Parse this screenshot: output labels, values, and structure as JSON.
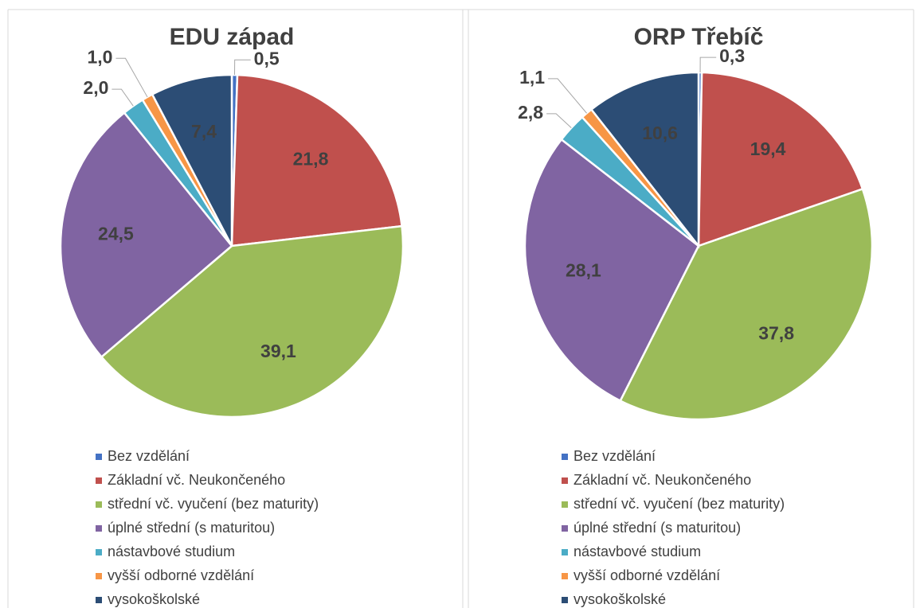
{
  "chart_data": [
    {
      "type": "pie",
      "title": "EDU západ",
      "categories": [
        "Bez vzdělání",
        "Základní vč. Neukončeného",
        "střední vč. vyučení (bez maturity)",
        "úplné střední (s maturitou)",
        "nástavbové studium",
        "vyšší odborné vzdělání",
        "vysokoškolské"
      ],
      "values": [
        0.5,
        21.8,
        39.1,
        24.5,
        2.0,
        1.0,
        7.4
      ],
      "value_labels": [
        "0,5",
        "21,8",
        "39,1",
        "24,5",
        "2,0",
        "1,0",
        "7,4"
      ],
      "colors": [
        "#4472c4",
        "#c0504d",
        "#9bbb59",
        "#8064a2",
        "#4bacc6",
        "#f79646",
        "#2c4d75"
      ]
    },
    {
      "type": "pie",
      "title": "ORP Třebíč",
      "categories": [
        "Bez vzdělání",
        "Základní vč. Neukončeného",
        "střední vč. vyučení (bez maturity)",
        "úplné střední (s maturitou)",
        "nástavbové studium",
        "vyšší odborné vzdělání",
        "vysokoškolské"
      ],
      "values": [
        0.3,
        19.4,
        37.8,
        28.1,
        2.8,
        1.1,
        10.6
      ],
      "value_labels": [
        "0,3",
        "19,4",
        "37,8",
        "28,1",
        "2,8",
        "1,1",
        "10,6"
      ],
      "colors": [
        "#4472c4",
        "#c0504d",
        "#9bbb59",
        "#8064a2",
        "#4bacc6",
        "#f79646",
        "#2c4d75"
      ]
    }
  ]
}
